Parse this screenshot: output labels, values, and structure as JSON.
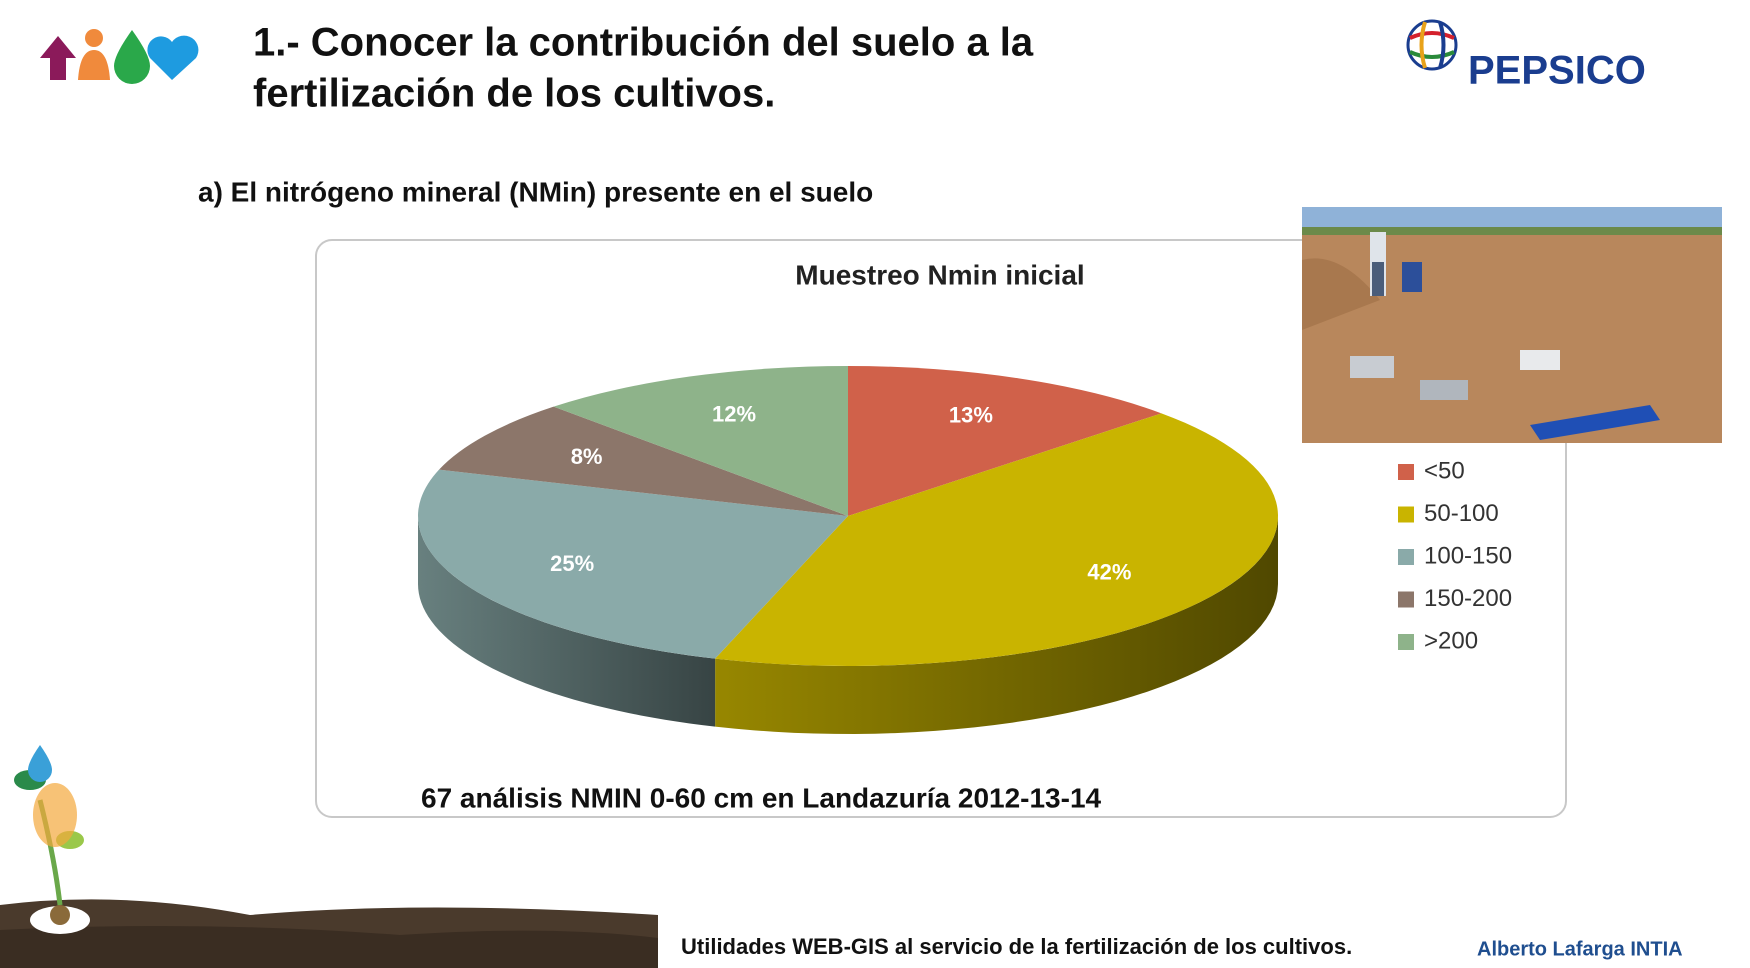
{
  "header": {
    "title_line1": "1.- Conocer la contribución del suelo a la",
    "title_line2": "fertilización de los cultivos.",
    "brand": "PEPSICO"
  },
  "subtitle": "a) El nitrógeno mineral (NMin) presente en el suelo",
  "chart_data": {
    "type": "pie",
    "title": "Muestreo Nmin inicial",
    "categories": [
      "<50",
      "50-100",
      "100-150",
      "150-200",
      ">200"
    ],
    "values": [
      13,
      42,
      25,
      8,
      12
    ],
    "value_labels": [
      "13%",
      "42%",
      "25%",
      "8%",
      "12%"
    ],
    "colors": [
      "#d0614a",
      "#c9b400",
      "#8aaaa9",
      "#8c766a",
      "#8eb38a"
    ],
    "legend": "right"
  },
  "caption": "67 análisis NMIN 0-60 cm en Landazuría 2012-13-14",
  "footer": {
    "text": "Utilidades WEB-GIS al servicio de la fertilización de los cultivos.",
    "author": "Alberto Lafarga INTIA"
  }
}
